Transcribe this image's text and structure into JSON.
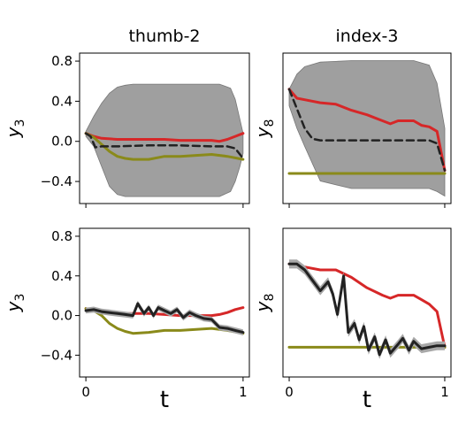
{
  "chart_data": [
    {
      "type": "line",
      "title": "thumb-2",
      "ylabel_base": "y",
      "ylabel_sub": "3",
      "xlim": [
        -0.04,
        1.04
      ],
      "ylim": [
        -0.62,
        0.88
      ],
      "yticks": [
        0.8,
        0.4,
        0.0,
        -0.4
      ],
      "ytick_labels": [
        "0.8",
        "0.4",
        "0.0",
        "−0.4"
      ],
      "xticks": [
        0,
        1
      ],
      "xtick_labels": [],
      "grey_band": {
        "x": [
          0.0,
          0.05,
          0.1,
          0.15,
          0.2,
          0.25,
          0.3,
          0.5,
          0.7,
          0.85,
          0.92,
          0.95,
          0.98,
          1.0
        ],
        "upper": [
          0.1,
          0.25,
          0.38,
          0.48,
          0.54,
          0.56,
          0.57,
          0.57,
          0.57,
          0.57,
          0.53,
          0.42,
          0.22,
          0.08
        ],
        "lower": [
          0.05,
          -0.05,
          -0.25,
          -0.45,
          -0.53,
          -0.55,
          -0.55,
          -0.55,
          -0.55,
          -0.55,
          -0.5,
          -0.4,
          -0.25,
          -0.12
        ]
      },
      "series": [
        {
          "color": "#d62728",
          "style": "solid",
          "x": [
            0.0,
            0.05,
            0.1,
            0.2,
            0.3,
            0.4,
            0.5,
            0.6,
            0.7,
            0.8,
            0.85,
            0.9,
            0.95,
            1.0
          ],
          "y": [
            0.08,
            0.05,
            0.03,
            0.02,
            0.02,
            0.02,
            0.02,
            0.01,
            0.01,
            0.01,
            0.0,
            0.02,
            0.05,
            0.08
          ]
        },
        {
          "color": "#8a8a1a",
          "style": "solid",
          "x": [
            0.0,
            0.05,
            0.1,
            0.15,
            0.2,
            0.25,
            0.3,
            0.4,
            0.5,
            0.6,
            0.7,
            0.8,
            0.9,
            1.0
          ],
          "y": [
            0.08,
            0.04,
            -0.03,
            -0.1,
            -0.15,
            -0.17,
            -0.18,
            -0.18,
            -0.15,
            -0.15,
            -0.14,
            -0.13,
            -0.15,
            -0.18
          ]
        },
        {
          "color": "#222222",
          "style": "dashed",
          "x": [
            0.0,
            0.03,
            0.06,
            0.1,
            0.2,
            0.4,
            0.6,
            0.8,
            0.9,
            0.95,
            1.0
          ],
          "y": [
            0.08,
            0.05,
            -0.06,
            -0.05,
            -0.05,
            -0.04,
            -0.04,
            -0.05,
            -0.05,
            -0.07,
            -0.17
          ]
        }
      ]
    },
    {
      "type": "line",
      "title": "index-3",
      "ylabel_base": "y",
      "ylabel_sub": "8",
      "xlim": [
        -0.04,
        1.04
      ],
      "ylim": [
        -0.2,
        0.8
      ],
      "yticks": [],
      "ytick_labels": [],
      "xticks": [
        0,
        1
      ],
      "xtick_labels": [],
      "grey_band": {
        "x": [
          0.0,
          0.05,
          0.1,
          0.2,
          0.4,
          0.6,
          0.8,
          0.9,
          0.95,
          1.0
        ],
        "upper": [
          0.56,
          0.66,
          0.71,
          0.74,
          0.75,
          0.75,
          0.75,
          0.72,
          0.6,
          0.3
        ],
        "lower": [
          0.45,
          0.3,
          0.18,
          -0.05,
          -0.1,
          -0.1,
          -0.1,
          -0.1,
          -0.12,
          -0.15
        ]
      },
      "series": [
        {
          "color": "#d62728",
          "style": "solid",
          "x": [
            0.0,
            0.05,
            0.1,
            0.2,
            0.3,
            0.4,
            0.5,
            0.6,
            0.65,
            0.7,
            0.8,
            0.85,
            0.9,
            0.95,
            1.0
          ],
          "y": [
            0.56,
            0.5,
            0.49,
            0.47,
            0.46,
            0.42,
            0.39,
            0.35,
            0.33,
            0.35,
            0.35,
            0.32,
            0.31,
            0.28,
            0.02
          ]
        },
        {
          "color": "#222222",
          "style": "dashed",
          "x": [
            0.0,
            0.1,
            0.15,
            0.2,
            0.4,
            0.6,
            0.8,
            0.9,
            0.95,
            1.0
          ],
          "y": [
            0.56,
            0.3,
            0.23,
            0.22,
            0.22,
            0.22,
            0.22,
            0.22,
            0.2,
            0.02
          ]
        },
        {
          "color": "#8a8a1a",
          "style": "solid",
          "x": [
            0.0,
            1.0
          ],
          "y": [
            0.0,
            0.0
          ]
        }
      ]
    },
    {
      "type": "line",
      "title": "",
      "ylabel_base": "y",
      "ylabel_sub": "3",
      "xlim": [
        -0.04,
        1.04
      ],
      "ylim": [
        -0.62,
        0.88
      ],
      "yticks": [
        0.8,
        0.4,
        0.0,
        -0.4
      ],
      "ytick_labels": [
        "0.8",
        "0.4",
        "0.0",
        "−0.4"
      ],
      "xticks": [
        0,
        1
      ],
      "xtick_labels": [
        "0",
        "1"
      ],
      "xlabel": "t",
      "band_halfwidth": 0.03,
      "series": [
        {
          "color": "#d62728",
          "style": "solid",
          "x": [
            0.0,
            0.1,
            0.2,
            0.3,
            0.4,
            0.5,
            0.6,
            0.7,
            0.8,
            0.85,
            0.9,
            0.95,
            1.0
          ],
          "y": [
            0.07,
            0.04,
            0.02,
            0.02,
            0.02,
            0.01,
            0.0,
            0.0,
            0.0,
            0.01,
            0.03,
            0.06,
            0.08
          ]
        },
        {
          "color": "#8a8a1a",
          "style": "solid",
          "x": [
            0.0,
            0.05,
            0.1,
            0.15,
            0.2,
            0.25,
            0.3,
            0.4,
            0.5,
            0.6,
            0.7,
            0.8,
            0.9,
            1.0
          ],
          "y": [
            0.07,
            0.05,
            0.0,
            -0.08,
            -0.13,
            -0.16,
            -0.18,
            -0.17,
            -0.15,
            -0.15,
            -0.14,
            -0.13,
            -0.15,
            -0.18
          ]
        },
        {
          "color": "#222222",
          "style": "solid",
          "banded": true,
          "x": [
            0.0,
            0.05,
            0.1,
            0.15,
            0.2,
            0.25,
            0.3,
            0.33,
            0.37,
            0.4,
            0.43,
            0.46,
            0.5,
            0.54,
            0.58,
            0.62,
            0.66,
            0.7,
            0.75,
            0.8,
            0.85,
            0.9,
            0.95,
            1.0
          ],
          "y": [
            0.05,
            0.06,
            0.04,
            0.03,
            0.02,
            0.01,
            0.0,
            0.12,
            0.02,
            0.08,
            0.0,
            0.08,
            0.05,
            0.02,
            0.06,
            -0.02,
            0.03,
            0.0,
            -0.03,
            -0.04,
            -0.12,
            -0.13,
            -0.15,
            -0.17
          ]
        }
      ]
    },
    {
      "type": "line",
      "title": "",
      "ylabel_base": "y",
      "ylabel_sub": "8",
      "xlim": [
        -0.04,
        1.04
      ],
      "ylim": [
        -0.2,
        0.8
      ],
      "yticks": [],
      "ytick_labels": [],
      "xticks": [
        0,
        1
      ],
      "xtick_labels": [
        "0",
        "1"
      ],
      "xlabel": "t",
      "band_halfwidth": 0.03,
      "series": [
        {
          "color": "#d62728",
          "style": "solid",
          "x": [
            0.0,
            0.1,
            0.2,
            0.3,
            0.4,
            0.5,
            0.6,
            0.65,
            0.7,
            0.8,
            0.85,
            0.9,
            0.95,
            1.0
          ],
          "y": [
            0.56,
            0.54,
            0.52,
            0.52,
            0.47,
            0.4,
            0.35,
            0.33,
            0.35,
            0.35,
            0.32,
            0.29,
            0.24,
            0.0
          ]
        },
        {
          "color": "#8a8a1a",
          "style": "solid",
          "x": [
            0.0,
            1.0
          ],
          "y": [
            0.0,
            0.0
          ]
        },
        {
          "color": "#222222",
          "style": "solid",
          "banded": true,
          "x": [
            0.0,
            0.05,
            0.1,
            0.15,
            0.2,
            0.25,
            0.28,
            0.31,
            0.35,
            0.38,
            0.42,
            0.45,
            0.48,
            0.51,
            0.55,
            0.58,
            0.62,
            0.65,
            0.7,
            0.73,
            0.77,
            0.8,
            0.85,
            0.9,
            0.95,
            1.0
          ],
          "y": [
            0.56,
            0.56,
            0.52,
            0.45,
            0.38,
            0.44,
            0.36,
            0.22,
            0.48,
            0.1,
            0.16,
            0.05,
            0.14,
            -0.02,
            0.07,
            -0.05,
            0.05,
            -0.04,
            0.02,
            0.06,
            -0.02,
            0.04,
            -0.01,
            0.0,
            0.01,
            0.01
          ]
        }
      ]
    }
  ]
}
